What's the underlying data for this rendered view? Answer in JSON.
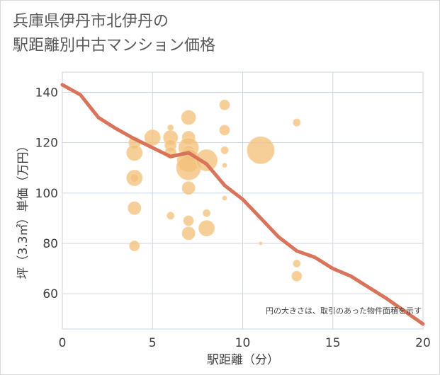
{
  "title_lines": [
    "兵庫県伊丹市北伊丹の",
    "駅距離別中古マンション価格"
  ],
  "colors": {
    "bubble": "#f3c07a",
    "bubble_edge": "#f6d7a8",
    "line": "#d9735a",
    "grid": "#ccd6e0",
    "plot_bg": "#ffffff"
  },
  "chart_data": {
    "type": "scatter",
    "title": "兵庫県伊丹市北伊丹の駅距離別中古マンション価格",
    "xlabel": "駅距離（分）",
    "ylabel": "坪（3.3㎡）単価（万円）",
    "xlim": [
      0,
      20
    ],
    "ylim": [
      46,
      148
    ],
    "xticks": [
      0,
      5,
      10,
      15,
      20
    ],
    "yticks": [
      60,
      80,
      100,
      120,
      140
    ],
    "note": "円の大きさは、取引のあった物件面積を示す",
    "bubbles": [
      {
        "x": 4,
        "y": 120,
        "s": 8
      },
      {
        "x": 4,
        "y": 116,
        "s": 11
      },
      {
        "x": 4,
        "y": 106,
        "s": 11
      },
      {
        "x": 4,
        "y": 106,
        "s": 6
      },
      {
        "x": 4,
        "y": 94,
        "s": 9
      },
      {
        "x": 4,
        "y": 79,
        "s": 7
      },
      {
        "x": 5,
        "y": 122,
        "s": 11
      },
      {
        "x": 6,
        "y": 126,
        "s": 4
      },
      {
        "x": 6,
        "y": 122,
        "s": 10
      },
      {
        "x": 6,
        "y": 119,
        "s": 8
      },
      {
        "x": 6,
        "y": 116,
        "s": 8
      },
      {
        "x": 6,
        "y": 91,
        "s": 5
      },
      {
        "x": 7,
        "y": 130,
        "s": 10
      },
      {
        "x": 7,
        "y": 122,
        "s": 9
      },
      {
        "x": 7,
        "y": 118,
        "s": 14
      },
      {
        "x": 7,
        "y": 116,
        "s": 10
      },
      {
        "x": 7,
        "y": 113,
        "s": 16
      },
      {
        "x": 7,
        "y": 110,
        "s": 17
      },
      {
        "x": 7,
        "y": 102,
        "s": 9
      },
      {
        "x": 7,
        "y": 89,
        "s": 7
      },
      {
        "x": 7,
        "y": 84,
        "s": 9
      },
      {
        "x": 8,
        "y": 113,
        "s": 15
      },
      {
        "x": 8,
        "y": 92,
        "s": 5
      },
      {
        "x": 8,
        "y": 86,
        "s": 11
      },
      {
        "x": 9,
        "y": 135,
        "s": 7
      },
      {
        "x": 9,
        "y": 125,
        "s": 7
      },
      {
        "x": 9,
        "y": 117,
        "s": 5
      },
      {
        "x": 9,
        "y": 111,
        "s": 3
      },
      {
        "x": 9,
        "y": 98,
        "s": 3
      },
      {
        "x": 11,
        "y": 117,
        "s": 19
      },
      {
        "x": 11,
        "y": 80,
        "s": 2
      },
      {
        "x": 13,
        "y": 128,
        "s": 5
      },
      {
        "x": 13,
        "y": 72,
        "s": 5
      },
      {
        "x": 13,
        "y": 67,
        "s": 7
      }
    ],
    "trend": {
      "name": "average",
      "x": [
        0,
        1,
        2,
        3,
        4,
        5,
        6,
        7,
        8,
        9,
        10,
        11,
        12,
        13,
        14,
        15,
        16,
        17,
        18,
        19,
        20
      ],
      "y": [
        143,
        139,
        130,
        125.5,
        121.5,
        118,
        114.5,
        116,
        111.5,
        103,
        97.5,
        90,
        82.5,
        77,
        74.5,
        70,
        67,
        62.5,
        58,
        53,
        48
      ]
    }
  }
}
